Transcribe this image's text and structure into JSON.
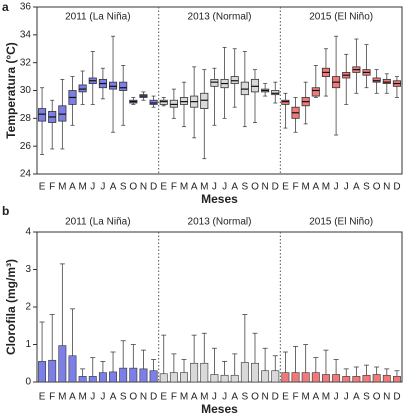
{
  "chart_data": [
    {
      "type": "box",
      "panel": "a",
      "y_label": "Temperatura (°C)",
      "x_label": "Meses",
      "categories": [
        "E",
        "F",
        "M",
        "A",
        "M",
        "J",
        "J",
        "A",
        "S",
        "O",
        "N",
        "D"
      ],
      "ylim": [
        24,
        36
      ],
      "yticks": [
        24,
        26,
        28,
        30,
        32,
        34,
        36
      ],
      "series": [
        {
          "name": "2011 (La Niña)",
          "color": "#7b7fe6",
          "min": [
            25.4,
            25.8,
            25.8,
            27.5,
            29.0,
            29.0,
            29.4,
            27.0,
            27.5,
            29.0,
            29.3,
            28.8
          ],
          "q1": [
            27.8,
            27.7,
            27.8,
            29.0,
            29.9,
            30.5,
            30.2,
            30.1,
            30.0,
            29.1,
            29.5,
            29.0
          ],
          "median": [
            28.3,
            28.1,
            28.3,
            29.5,
            30.1,
            30.7,
            30.5,
            30.3,
            30.2,
            29.2,
            29.6,
            29.1
          ],
          "q3": [
            28.7,
            28.5,
            28.9,
            30.0,
            30.4,
            30.9,
            30.8,
            30.6,
            30.6,
            29.3,
            29.7,
            29.3
          ],
          "max": [
            30.2,
            29.3,
            30.8,
            31.0,
            31.4,
            32.8,
            31.6,
            33.9,
            31.8,
            29.5,
            29.9,
            29.6
          ]
        },
        {
          "name": "2013 (Normal)",
          "color": "#d9d9d9",
          "min": [
            28.9,
            28.0,
            27.4,
            26.6,
            25.1,
            27.5,
            28.0,
            28.8,
            27.4,
            27.7,
            29.6,
            29.1
          ],
          "q1": [
            29.0,
            28.8,
            29.0,
            28.8,
            28.7,
            30.3,
            30.2,
            30.5,
            29.7,
            29.9,
            29.9,
            29.7
          ],
          "median": [
            29.2,
            29.0,
            29.2,
            29.2,
            29.3,
            30.6,
            30.5,
            30.7,
            30.1,
            30.3,
            30.0,
            29.8
          ],
          "q3": [
            29.3,
            29.3,
            29.5,
            29.6,
            29.8,
            30.8,
            30.8,
            31.0,
            30.6,
            30.8,
            30.1,
            30.0
          ],
          "max": [
            29.5,
            30.1,
            30.6,
            31.7,
            31.5,
            31.6,
            33.1,
            33.0,
            32.8,
            31.5,
            30.5,
            30.6
          ]
        },
        {
          "name": "2015 (El Niño)",
          "color": "#f07a7a",
          "min": [
            27.3,
            27.0,
            27.6,
            29.5,
            29.6,
            26.8,
            29.0,
            29.8,
            30.2,
            29.8,
            29.8,
            29.5
          ],
          "q1": [
            29.0,
            28.0,
            28.9,
            29.6,
            31.0,
            30.2,
            30.9,
            31.3,
            31.1,
            30.6,
            30.5,
            30.3
          ],
          "median": [
            29.2,
            28.4,
            29.2,
            30.0,
            31.3,
            30.6,
            31.1,
            31.5,
            31.3,
            30.7,
            30.6,
            30.5
          ],
          "q3": [
            29.3,
            28.8,
            29.5,
            30.2,
            31.6,
            31.0,
            31.3,
            31.7,
            31.5,
            30.9,
            30.8,
            30.7
          ],
          "max": [
            29.8,
            29.5,
            30.6,
            31.8,
            33.0,
            33.9,
            32.6,
            33.7,
            33.3,
            31.5,
            31.2,
            31.0
          ]
        }
      ]
    },
    {
      "type": "bar",
      "panel": "b",
      "y_label": "Clorofila (mg/m³)",
      "x_label": "Meses",
      "categories": [
        "E",
        "F",
        "M",
        "A",
        "M",
        "J",
        "J",
        "A",
        "S",
        "O",
        "N",
        "D"
      ],
      "ylim": [
        0,
        4
      ],
      "yticks": [
        0,
        1,
        2,
        3,
        4
      ],
      "series": [
        {
          "name": "2011 (La Niña)",
          "color": "#7b7fe6",
          "values": [
            0.55,
            0.58,
            0.97,
            0.7,
            0.15,
            0.15,
            0.25,
            0.27,
            0.37,
            0.37,
            0.35,
            0.3
          ],
          "errors": [
            1.05,
            1.22,
            2.18,
            1.25,
            0.2,
            0.5,
            0.3,
            0.53,
            0.73,
            0.63,
            0.5,
            0.3
          ]
        },
        {
          "name": "2013 (Normal)",
          "color": "#d9d9d9",
          "values": [
            0.22,
            0.25,
            0.25,
            0.5,
            0.5,
            0.2,
            0.18,
            0.18,
            0.52,
            0.5,
            0.3,
            0.3
          ],
          "errors": [
            1.03,
            0.5,
            0.35,
            0.75,
            0.8,
            0.7,
            0.37,
            0.57,
            1.28,
            0.8,
            0.6,
            0.4
          ]
        },
        {
          "name": "2015 (El Niño)",
          "color": "#f07a7a",
          "values": [
            0.25,
            0.25,
            0.25,
            0.25,
            0.2,
            0.2,
            0.15,
            0.15,
            0.18,
            0.2,
            0.18,
            0.15
          ],
          "errors": [
            0.55,
            0.7,
            0.75,
            0.4,
            0.65,
            0.4,
            0.2,
            0.25,
            0.27,
            0.2,
            0.17,
            0.15
          ]
        }
      ]
    }
  ]
}
